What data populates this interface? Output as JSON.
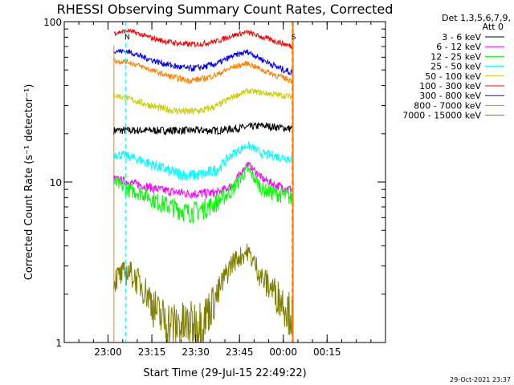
{
  "chart_data": {
    "type": "line",
    "title": "RHESSI Observing Summary Count Rates, Corrected",
    "xlabel": "Start Time (29-Jul-15 22:49:22)",
    "ylabel": "Corrected Count Rate (s⁻¹ detector⁻¹)",
    "y_scale": "log",
    "ylim": [
      1,
      100
    ],
    "x_range_minutes": [
      "22:45",
      "00:35"
    ],
    "x_ticks": [
      "23:00",
      "23:15",
      "23:30",
      "23:45",
      "00:00",
      "00:15"
    ],
    "y_ticks": [
      "1",
      "10",
      "100"
    ],
    "legend_header": [
      "Det 1,3,5,6,7,9,",
      "Att 0"
    ],
    "legend_position": "top-right",
    "data_start": "23:02",
    "data_end": "00:03",
    "series": [
      {
        "name": "3 - 6 keV",
        "color": "#000000",
        "profile": [
          21,
          21,
          21,
          21,
          21,
          21,
          21,
          21,
          21.5,
          22,
          22.5,
          22,
          21.5
        ],
        "jitter": 1.2
      },
      {
        "name": "6 - 12 keV",
        "color": "#ff00ff",
        "profile": [
          10.5,
          10,
          9.5,
          9,
          8.7,
          8.5,
          8.5,
          8.6,
          9.5,
          13,
          10.5,
          9.5,
          9
        ],
        "jitter": 0.6
      },
      {
        "name": "12 - 25 keV",
        "color": "#00ff00",
        "profile": [
          10,
          9,
          8.5,
          7.5,
          7,
          6.5,
          6.8,
          7.5,
          9,
          12,
          9,
          8.5,
          8
        ],
        "jitter": 1.0
      },
      {
        "name": "25 - 50 keV",
        "color": "#00ffff",
        "profile": [
          15,
          14.5,
          13.5,
          12.5,
          11.5,
          11,
          11.2,
          12,
          15,
          17,
          15,
          14.5,
          14
        ],
        "jitter": 1.0
      },
      {
        "name": "50 - 100 keV",
        "color": "#cccc00",
        "profile": [
          35,
          33,
          31,
          29,
          28,
          27.5,
          28,
          30,
          34,
          37,
          36,
          35,
          34
        ],
        "jitter": 1.5
      },
      {
        "name": "100 - 300 keV",
        "color": "#ff0000",
        "profile": [
          85,
          88,
          82,
          77,
          74,
          72,
          73,
          76,
          82,
          86,
          80,
          75,
          70
        ],
        "jitter": 3
      },
      {
        "name": "300 - 800 keV",
        "color": "#0000ff",
        "profile": [
          66,
          65,
          60,
          56,
          53,
          51,
          52,
          55,
          61,
          65,
          58,
          52,
          48
        ],
        "jitter": 2.5
      },
      {
        "name": "800 - 7000 keV",
        "color": "#ff8000",
        "profile": [
          57,
          56,
          52,
          48,
          45,
          43,
          44,
          47,
          52,
          55,
          50,
          46,
          43
        ],
        "jitter": 2
      },
      {
        "name": "7000 - 15000 keV",
        "color": "#808000",
        "profile": [
          2.5,
          2.8,
          2.2,
          1.5,
          1.3,
          1.3,
          1.4,
          2,
          3.2,
          3.7,
          2.5,
          2,
          1.5
        ],
        "jitter": 0.5
      }
    ],
    "markers": [
      {
        "label": "N",
        "time": "23:06",
        "color": "#00ffff",
        "style": "dashed"
      },
      {
        "label": "S",
        "time": "00:03",
        "color": "#ff8000",
        "style": "dashed"
      }
    ],
    "footer_stamp": "29-Oct-2021 23:37"
  }
}
